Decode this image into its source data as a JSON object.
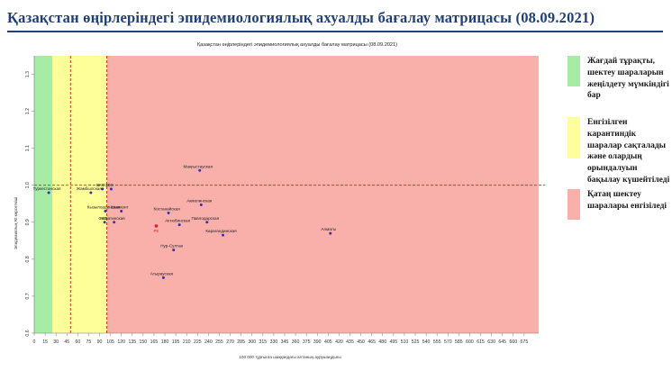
{
  "page": {
    "title": "Қазақстан өңірлеріндегі эпидемиологиялық ахуалды бағалау матрицасы  (08.09.2021)"
  },
  "legend": {
    "items": [
      {
        "text": "Жағдай тұрақты, шектеу шараларын жеңілдету мүмкіндігі бар",
        "color": "#a6eba6"
      },
      {
        "text": "Енгізілген карантиндік шаралар сақталады және олардың орындалуын бақылау күшейтіледі",
        "color": "#ffff99"
      },
      {
        "text": "Қатаң шектеу шаралары енгізіледі",
        "color": "#f9b0ab"
      }
    ]
  },
  "chart_data": {
    "type": "scatter",
    "title": "Қазақстан өңірлеріндегі эпидемиологиялық ахуалды бағалау матрицасы  (08.09.2021)",
    "xlabel": "100 000 тұрғынға шаққандағы аптаның аурушаңдығы",
    "ylabel": "Эпидемиялық Rt көрсеткіші",
    "xlim": [
      0,
      695
    ],
    "ylim": [
      0.6,
      1.35
    ],
    "x_ticks": [
      0,
      15,
      30,
      45,
      60,
      75,
      90,
      105,
      120,
      135,
      150,
      165,
      180,
      195,
      210,
      225,
      240,
      255,
      270,
      285,
      300,
      315,
      330,
      345,
      360,
      375,
      390,
      405,
      420,
      435,
      450,
      465,
      480,
      495,
      510,
      525,
      540,
      555,
      570,
      585,
      600,
      615,
      630,
      645,
      660,
      675
    ],
    "y_ticks": [
      0.6,
      0.7,
      0.8,
      0.9,
      1.0,
      1.1,
      1.2,
      1.3
    ],
    "zones": [
      {
        "x_from": 0,
        "x_to": 50,
        "color": "#a6eba6"
      },
      {
        "x_from": 50,
        "x_to": 100,
        "color": "#ffff99"
      },
      {
        "x_from": 100,
        "x_to": 695,
        "color": "#f9b0ab"
      }
    ],
    "band": {
      "x_from": 25,
      "x_to": 50,
      "color": "#ffff99"
    },
    "reference_lines": {
      "x": [
        50,
        100
      ],
      "y": 1.0,
      "color": "#e0201c"
    },
    "points": [
      {
        "label": "Маңғыстауская",
        "x": 228,
        "y": 1.04
      },
      {
        "label": "ВКО",
        "x": 94,
        "y": 0.99
      },
      {
        "label": "ЗКО",
        "x": 106,
        "y": 0.99
      },
      {
        "label": "Туркестанская",
        "x": 20,
        "y": 0.98
      },
      {
        "label": "Жамбылская",
        "x": 78,
        "y": 0.98
      },
      {
        "label": "Акмолинская",
        "x": 230,
        "y": 0.947
      },
      {
        "label": "Шымкент",
        "x": 120,
        "y": 0.93
      },
      {
        "label": "Кызылординская",
        "x": 98,
        "y": 0.93
      },
      {
        "label": "Костанайская",
        "x": 185,
        "y": 0.925
      },
      {
        "label": "Павлодарская",
        "x": 238,
        "y": 0.9
      },
      {
        "label": "СКО",
        "x": 97,
        "y": 0.9
      },
      {
        "label": "Алматинская",
        "x": 110,
        "y": 0.9
      },
      {
        "label": "Актюбинская",
        "x": 200,
        "y": 0.893
      },
      {
        "label": "РК",
        "x": 168,
        "y": 0.89
      },
      {
        "label": "Карагандинская",
        "x": 260,
        "y": 0.865
      },
      {
        "label": "Алматы",
        "x": 408,
        "y": 0.87
      },
      {
        "label": "Нур-Султан",
        "x": 192,
        "y": 0.825
      },
      {
        "label": "Атырауская",
        "x": 178,
        "y": 0.75
      }
    ]
  }
}
